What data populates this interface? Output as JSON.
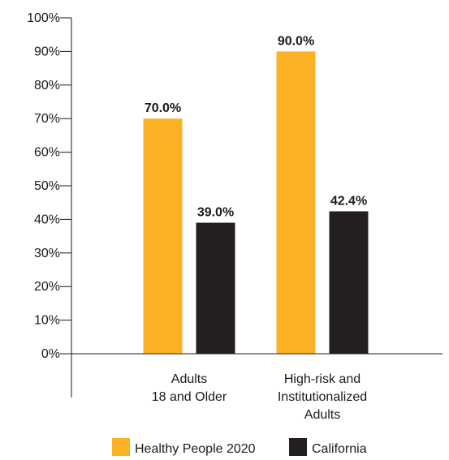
{
  "chart_data": {
    "type": "bar",
    "categories": [
      [
        "Adults",
        "18 and Older"
      ],
      [
        "High-risk and",
        "Institutionalized",
        "Adults"
      ]
    ],
    "series": [
      {
        "name": "Healthy People 2020",
        "color": "#FBB325",
        "values": [
          70.0,
          90.0
        ],
        "labels": [
          "70.0%",
          "90.0%"
        ]
      },
      {
        "name": "California",
        "color": "#231F20",
        "values": [
          39.0,
          42.4
        ],
        "labels": [
          "39.0%",
          "42.4%"
        ]
      }
    ],
    "ylim": [
      0,
      100
    ],
    "yticks": [
      0,
      10,
      20,
      30,
      40,
      50,
      60,
      70,
      80,
      90,
      100
    ],
    "ytick_labels": [
      "0%",
      "10%",
      "20%",
      "30%",
      "40%",
      "50%",
      "60%",
      "70%",
      "80%",
      "90%",
      "100%"
    ],
    "legend_position": "bottom",
    "grid": false
  }
}
